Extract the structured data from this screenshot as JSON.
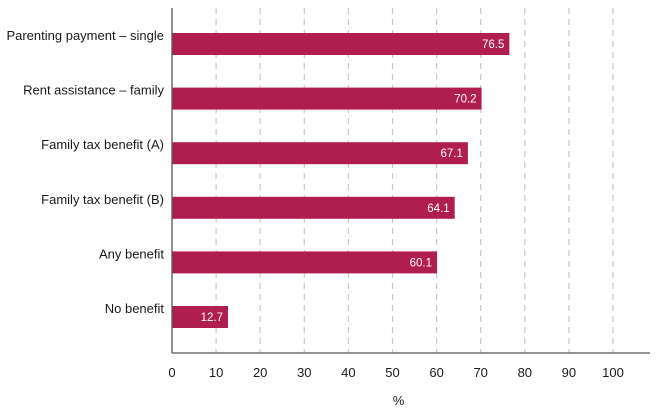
{
  "chart_data": {
    "type": "bar",
    "orientation": "horizontal",
    "categories": [
      "Parenting payment – single",
      "Rent assistance – family",
      "Family tax benefit (A)",
      "Family tax benefit (B)",
      "Any benefit",
      "No benefit"
    ],
    "values": [
      76.5,
      70.2,
      67.1,
      64.1,
      60.1,
      12.7
    ],
    "data_labels": [
      "76.5",
      "70.2",
      "67.1",
      "64.1",
      "60.1",
      "12.7"
    ],
    "xlabel": "%",
    "ylabel": "",
    "xlim": [
      0,
      100
    ],
    "x_ticks": [
      0,
      10,
      20,
      30,
      40,
      50,
      60,
      70,
      80,
      90,
      100
    ],
    "grid": "vertical dashed",
    "legend": "none",
    "bar_color": "#b01e4f",
    "grid_color": "#c8c8c8"
  }
}
